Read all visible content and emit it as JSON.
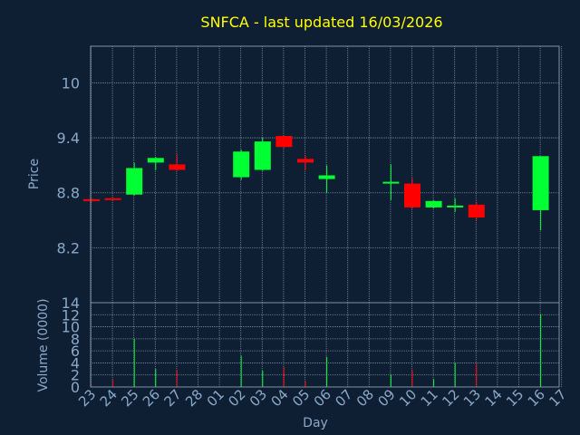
{
  "chart_data": {
    "type": "candlestick",
    "title": "SNFCA - last updated 16/03/2026",
    "xlabel": "Day",
    "price_panel": {
      "ylabel": "Price",
      "ylim": [
        7.6,
        10.4
      ],
      "yticks": [
        "8.2",
        "8.8",
        "9.4",
        "10"
      ],
      "ytick_values": [
        8.2,
        8.8,
        9.4,
        10.0
      ]
    },
    "volume_panel": {
      "ylabel": "Volume (0000)",
      "ylim": [
        0,
        14
      ],
      "yticks": [
        "0",
        "2",
        "4",
        "6",
        "8",
        "10",
        "12",
        "14"
      ],
      "ytick_values": [
        0,
        2,
        4,
        6,
        8,
        10,
        12,
        14
      ]
    },
    "x_ticks": [
      "23",
      "24",
      "25",
      "26",
      "27",
      "28",
      "01",
      "02",
      "03",
      "04",
      "05",
      "06",
      "07",
      "08",
      "09",
      "10",
      "11",
      "12",
      "13",
      "14",
      "15",
      "16",
      "17"
    ],
    "candles": [
      {
        "day": "23",
        "open": 8.73,
        "close": 8.71,
        "high": 8.74,
        "low": 8.7
      },
      {
        "day": "24",
        "open": 8.74,
        "close": 8.73,
        "high": 8.75,
        "low": 8.72
      },
      {
        "day": "25",
        "open": 8.78,
        "close": 9.07,
        "high": 9.13,
        "low": 8.77
      },
      {
        "day": "26",
        "open": 9.13,
        "close": 9.18,
        "high": 9.19,
        "low": 9.05
      },
      {
        "day": "27",
        "open": 9.11,
        "close": 9.05,
        "high": 9.22,
        "low": 9.04
      },
      {
        "day": "02",
        "open": 8.97,
        "close": 9.25,
        "high": 9.27,
        "low": 8.94
      },
      {
        "day": "03",
        "open": 9.05,
        "close": 9.36,
        "high": 9.4,
        "low": 9.04
      },
      {
        "day": "04",
        "open": 9.42,
        "close": 9.3,
        "high": 9.42,
        "low": 9.29
      },
      {
        "day": "05",
        "open": 9.17,
        "close": 9.13,
        "high": 9.21,
        "low": 9.05
      },
      {
        "day": "06",
        "open": 8.95,
        "close": 8.99,
        "high": 9.1,
        "low": 8.8
      },
      {
        "day": "09",
        "open": 8.92,
        "close": 8.92,
        "high": 9.11,
        "low": 8.72
      },
      {
        "day": "10",
        "open": 8.9,
        "close": 8.64,
        "high": 8.96,
        "low": 8.63
      },
      {
        "day": "11",
        "open": 8.64,
        "close": 8.71,
        "high": 8.72,
        "low": 8.63
      },
      {
        "day": "12",
        "open": 8.65,
        "close": 8.66,
        "high": 8.74,
        "low": 8.59
      },
      {
        "day": "13",
        "open": 8.67,
        "close": 8.53,
        "high": 8.7,
        "low": 8.5
      },
      {
        "day": "16",
        "open": 8.61,
        "close": 9.2,
        "high": 9.2,
        "low": 8.39
      }
    ],
    "volume": [
      {
        "day": "23",
        "value": 0.2
      },
      {
        "day": "24",
        "value": 1.2
      },
      {
        "day": "25",
        "value": 8.0
      },
      {
        "day": "26",
        "value": 3.0
      },
      {
        "day": "27",
        "value": 2.8
      },
      {
        "day": "02",
        "value": 5.2
      },
      {
        "day": "03",
        "value": 2.7
      },
      {
        "day": "04",
        "value": 3.3
      },
      {
        "day": "05",
        "value": 1.0
      },
      {
        "day": "06",
        "value": 5.0
      },
      {
        "day": "09",
        "value": 2.0
      },
      {
        "day": "10",
        "value": 2.7
      },
      {
        "day": "11",
        "value": 1.3
      },
      {
        "day": "12",
        "value": 4.0
      },
      {
        "day": "13",
        "value": 3.8
      },
      {
        "day": "16",
        "value": 12.1
      }
    ],
    "colors": {
      "background": "#0f1f33",
      "grid": "#7f8fa6",
      "axis_text": "#8aa8c8",
      "title": "#ffff00",
      "up": "#00ff33",
      "down": "#ff0000"
    }
  }
}
